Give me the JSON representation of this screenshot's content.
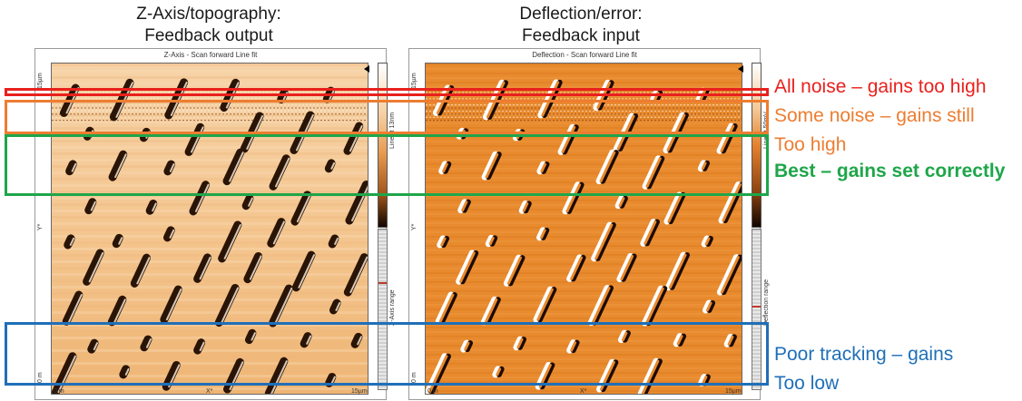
{
  "left_header": {
    "line1": "Z-Axis/topography:",
    "line2": "Feedback output"
  },
  "right_header": {
    "line1": "Deflection/error:",
    "line2": "Feedback input"
  },
  "left_panel": {
    "title": "Z-Axis - Scan forward   Line fit",
    "y_top": "15µm",
    "y_bottom": "0 m",
    "y_axis": "Y*",
    "x_left": "0 m",
    "x_mid": "X*",
    "x_right": "15µm",
    "scale_label": "Line fit 13nm",
    "range_label": "Z-Axis range"
  },
  "right_panel": {
    "title": "Deflection - Scan forward   Line fit",
    "y_top": "15µm",
    "y_bottom": "0 m",
    "y_axis": "Y*",
    "x_left": "0 m",
    "x_mid": "X*",
    "x_right": "15µm",
    "scale_label": "Line fit 50mV",
    "range_label": "Deflection range"
  },
  "annotations": [
    {
      "lines": [
        "All noise – gains too high"
      ],
      "color": "#e8211d",
      "bold": false
    },
    {
      "lines": [
        "Some noise – gains still",
        "Too high"
      ],
      "color": "#ed7d31",
      "bold": false
    },
    {
      "lines": [
        "Best – gains set correctly"
      ],
      "color": "#1ea64a",
      "bold": true
    },
    {
      "lines": [
        "Poor tracking – gains",
        "Too low"
      ],
      "color": "#1f6fb8",
      "bold": false
    }
  ]
}
